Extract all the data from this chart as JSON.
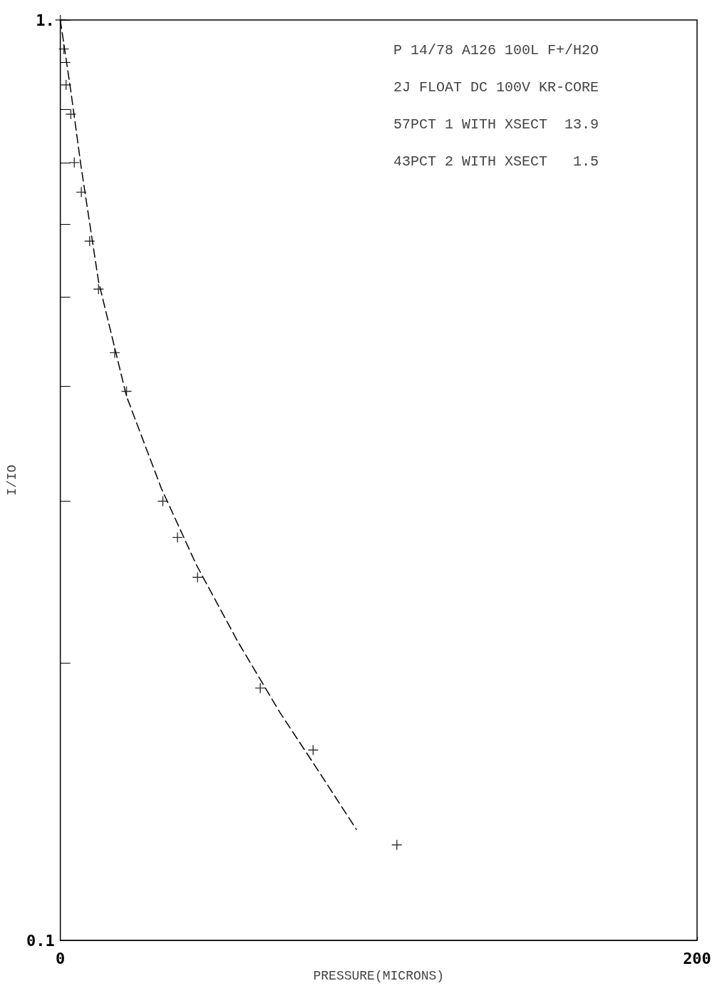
{
  "chart_data": {
    "type": "scatter",
    "xlabel": "PRESSURE(MICRONS)",
    "ylabel": "I/IO",
    "annotations": [
      "P 14/78 A126 100L F+/H2O",
      "2J FLOAT DC 100V KR-CORE",
      "57PCT 1 WITH XSECT  13.9",
      "43PCT 2 WITH XSECT   1.5"
    ],
    "series": [
      {
        "color": "#000000",
        "marker": "cross",
        "x": [
          0,
          1.1,
          1.8,
          3.3,
          4.4,
          6.6,
          9.2,
          12.0,
          17.1,
          20.8,
          32.2,
          36.8,
          43.1,
          62.8,
          79.4,
          105.7
        ],
        "values": [
          1.0,
          0.93,
          0.85,
          0.79,
          0.7,
          0.65,
          0.575,
          0.51,
          0.435,
          0.395,
          0.3,
          0.274,
          0.248,
          0.188,
          0.161,
          0.127
        ]
      },
      {
        "type": "line",
        "color": "#000000",
        "line_style": "dashed",
        "marker": "none",
        "x": [
          0,
          3.3,
          6.6,
          12,
          20.8,
          31.7,
          42.7,
          55.8,
          68.9,
          79.9,
          93
        ],
        "values": [
          1.0,
          0.837,
          0.69,
          0.52,
          0.39,
          0.31,
          0.256,
          0.211,
          0.177,
          0.155,
          0.132
        ]
      }
    ],
    "log": "y",
    "grid": false,
    "xlim": [
      0,
      200
    ],
    "xticks": [
      0,
      200
    ],
    "ylim": [
      0.1,
      1
    ],
    "yticks": [
      {
        "value": 0.1,
        "label": "0.1"
      },
      {
        "value": 0.2,
        "label": null
      },
      {
        "value": 0.3,
        "label": null
      },
      {
        "value": 0.4,
        "label": null
      },
      {
        "value": 0.5,
        "label": null
      },
      {
        "value": 0.6,
        "label": null
      },
      {
        "value": 0.7,
        "label": null
      },
      {
        "value": 0.8,
        "label": null
      },
      {
        "value": 0.9,
        "label": null
      },
      {
        "value": 1,
        "label": "1."
      }
    ]
  }
}
